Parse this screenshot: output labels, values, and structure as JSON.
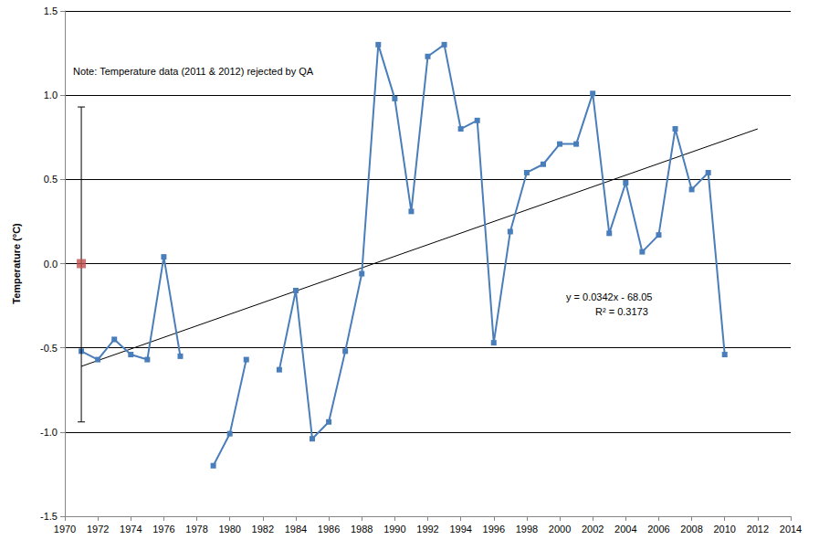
{
  "chart_data": {
    "type": "line",
    "y_label": "Temperature (°C)",
    "annotations": [
      "Note: Temperature data (2011 & 2012) rejected by QA",
      "y = 0.0342x - 68.05",
      "R² = 0.3173"
    ],
    "x": [
      1971,
      1972,
      1973,
      1974,
      1975,
      1976,
      1977,
      1978,
      1979,
      1980,
      1981,
      1982,
      1983,
      1984,
      1985,
      1986,
      1987,
      1988,
      1989,
      1990,
      1991,
      1992,
      1993,
      1994,
      1995,
      1996,
      1997,
      1998,
      1999,
      2000,
      2001,
      2002,
      2003,
      2004,
      2005,
      2006,
      2007,
      2008,
      2009,
      2010
    ],
    "values": [
      -0.52,
      -0.57,
      -0.45,
      -0.54,
      -0.57,
      0.04,
      -0.55,
      null,
      -1.2,
      -1.01,
      -0.57,
      null,
      -0.63,
      -0.16,
      -1.04,
      -0.94,
      -0.52,
      -0.06,
      1.3,
      0.98,
      0.31,
      1.23,
      1.3,
      0.8,
      0.85,
      -0.47,
      0.19,
      0.54,
      0.59,
      0.71,
      0.71,
      1.01,
      0.18,
      0.48,
      0.07,
      0.17,
      0.8,
      0.44,
      0.54,
      -0.54
    ],
    "color": "#4a7ebb",
    "marker": "square",
    "line_style": "solid",
    "trendline": {
      "x": [
        1971,
        2012
      ],
      "values": [
        -0.61,
        0.8
      ],
      "color": "#000000"
    },
    "reference_point": {
      "x": 1971,
      "value": 0,
      "low": -0.94,
      "high": 0.93,
      "color": "#c0504d",
      "marker": "square"
    },
    "xlim": [
      1970,
      2014
    ],
    "xticks": [
      1970,
      1972,
      1974,
      1976,
      1978,
      1980,
      1982,
      1984,
      1986,
      1988,
      1990,
      1992,
      1994,
      1996,
      1998,
      2000,
      2002,
      2004,
      2006,
      2008,
      2010,
      2012,
      2014
    ],
    "ylim": [
      -1.5,
      1.5
    ],
    "yticks": [
      -1.5,
      {
        "value": -1,
        "label": "-1.0"
      },
      -0.5,
      {
        "value": 0,
        "label": "0.0"
      },
      0.5,
      {
        "value": 1,
        "label": "1.0"
      },
      1.5
    ],
    "grid": true
  }
}
